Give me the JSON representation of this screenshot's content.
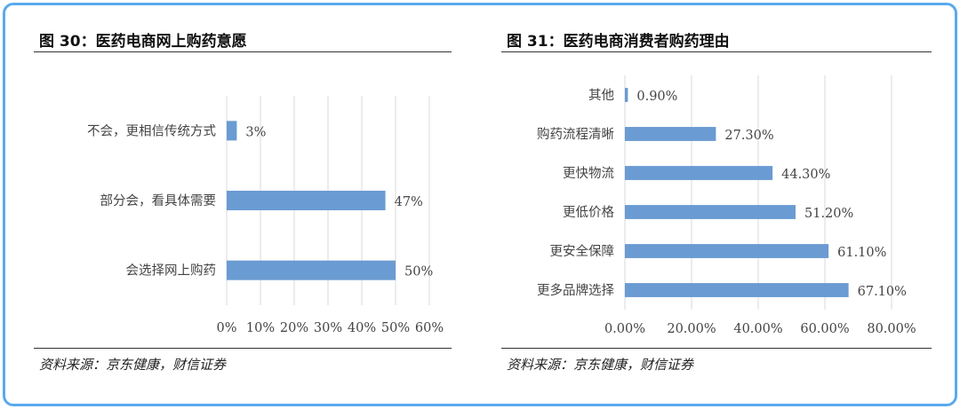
{
  "left": {
    "title": "图 30：医药电商网上购药意愿",
    "source": "资料来源：京东健康，财信证券"
  },
  "right": {
    "title": "图 31：医药电商消费者购药理由",
    "source": "资料来源：京东健康，财信证券"
  },
  "chart_data": [
    {
      "type": "bar",
      "orientation": "horizontal",
      "categories": [
        "不会，更相信传统方式",
        "部分会，看具体需要",
        "会选择网上购药"
      ],
      "values": [
        3,
        47,
        50
      ],
      "value_labels": [
        "3%",
        "47%",
        "50%"
      ],
      "xlim": [
        0,
        60
      ],
      "xticks": [
        "0%",
        "10%",
        "20%",
        "30%",
        "40%",
        "50%",
        "60%"
      ],
      "grid": "vertical",
      "color": "#6a9bd2"
    },
    {
      "type": "bar",
      "orientation": "horizontal",
      "categories": [
        "其他",
        "购药流程清晰",
        "更快物流",
        "更低价格",
        "更安全保障",
        "更多品牌选择"
      ],
      "values": [
        0.9,
        27.3,
        44.3,
        51.2,
        61.1,
        67.1
      ],
      "value_labels": [
        "0.90%",
        "27.30%",
        "44.30%",
        "51.20%",
        "61.10%",
        "67.10%"
      ],
      "xlim": [
        0,
        80
      ],
      "xticks": [
        "0.00%",
        "20.00%",
        "40.00%",
        "60.00%",
        "80.00%"
      ],
      "grid": "vertical",
      "color": "#6a9bd2"
    }
  ]
}
